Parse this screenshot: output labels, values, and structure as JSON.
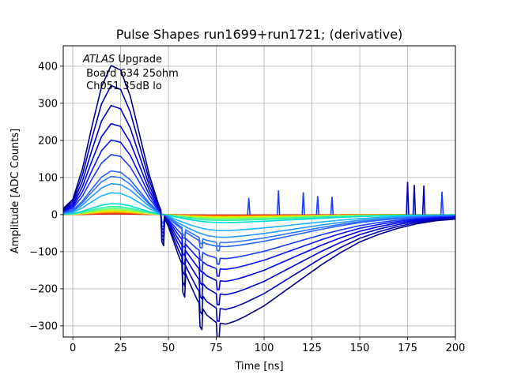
{
  "chart_data": {
    "type": "line",
    "title": "Pulse Shapes run1699+run1721; (derivative)",
    "xlabel": "Time [ns]",
    "ylabel": "Amplitude [ADC Counts]",
    "xlim": [
      -5,
      200
    ],
    "ylim": [
      -330,
      455
    ],
    "xticks": [
      0,
      25,
      50,
      75,
      100,
      125,
      150,
      175,
      200
    ],
    "yticks": [
      -300,
      -200,
      -100,
      0,
      100,
      200,
      300,
      400
    ],
    "grid": true,
    "annotation": {
      "italic": "ATLAS",
      "normal": " Upgrade",
      "line2": " Board 634 25ohm",
      "line3": " Ch051 35dB lo"
    },
    "pulse_model": {
      "x": [
        -5,
        0,
        5,
        10,
        15,
        20,
        25,
        30,
        35,
        40,
        45,
        50,
        55,
        60,
        65,
        70,
        75,
        80,
        85,
        90,
        100,
        110,
        120,
        130,
        140,
        150,
        160,
        170,
        180,
        190,
        200
      ],
      "shape": [
        0.04,
        0.1,
        0.3,
        0.58,
        0.84,
        0.98,
        0.95,
        0.78,
        0.52,
        0.26,
        0.06,
        -0.08,
        -0.26,
        -0.42,
        -0.56,
        -0.66,
        -0.71,
        -0.72,
        -0.7,
        -0.67,
        -0.6,
        -0.51,
        -0.42,
        -0.33,
        -0.25,
        -0.18,
        -0.13,
        -0.09,
        -0.06,
        -0.04,
        -0.03
      ]
    },
    "series": [
      {
        "peak": 410,
        "color": "#00008b"
      },
      {
        "peak": 355,
        "color": "#0000b4"
      },
      {
        "peak": 300,
        "color": "#0000cd"
      },
      {
        "peak": 250,
        "color": "#0000e6"
      },
      {
        "peak": 205,
        "color": "#0a14f5"
      },
      {
        "peak": 165,
        "color": "#1e3cff"
      },
      {
        "peak": 120,
        "color": "#2864ff"
      },
      {
        "peak": 105,
        "color": "#3278ff"
      },
      {
        "peak": 85,
        "color": "#2896ff"
      },
      {
        "peak": 60,
        "color": "#1eb4ff"
      },
      {
        "peak": 30,
        "color": "#00dcd2"
      },
      {
        "peak": 22,
        "color": "#32f0aa"
      },
      {
        "peak": 17,
        "color": "#64ff78"
      },
      {
        "peak": 13,
        "color": "#a0ff3c"
      },
      {
        "peak": 10,
        "color": "#e6f000"
      },
      {
        "peak": 7,
        "color": "#ffb400"
      },
      {
        "peak": 5,
        "color": "#ff6400"
      },
      {
        "peak": 3,
        "color": "#f01e00"
      },
      {
        "peak": 2,
        "color": "#b40000"
      }
    ],
    "spikes": [
      {
        "x": 92,
        "y": 45
      },
      {
        "x": 107.5,
        "y": 65
      },
      {
        "x": 120.5,
        "y": 60
      },
      {
        "x": 128,
        "y": 50
      },
      {
        "x": 135.5,
        "y": 48
      },
      {
        "x": 175,
        "y": 88
      },
      {
        "x": 178.5,
        "y": 80
      },
      {
        "x": 183.5,
        "y": 78
      },
      {
        "x": 193,
        "y": 62
      }
    ]
  }
}
